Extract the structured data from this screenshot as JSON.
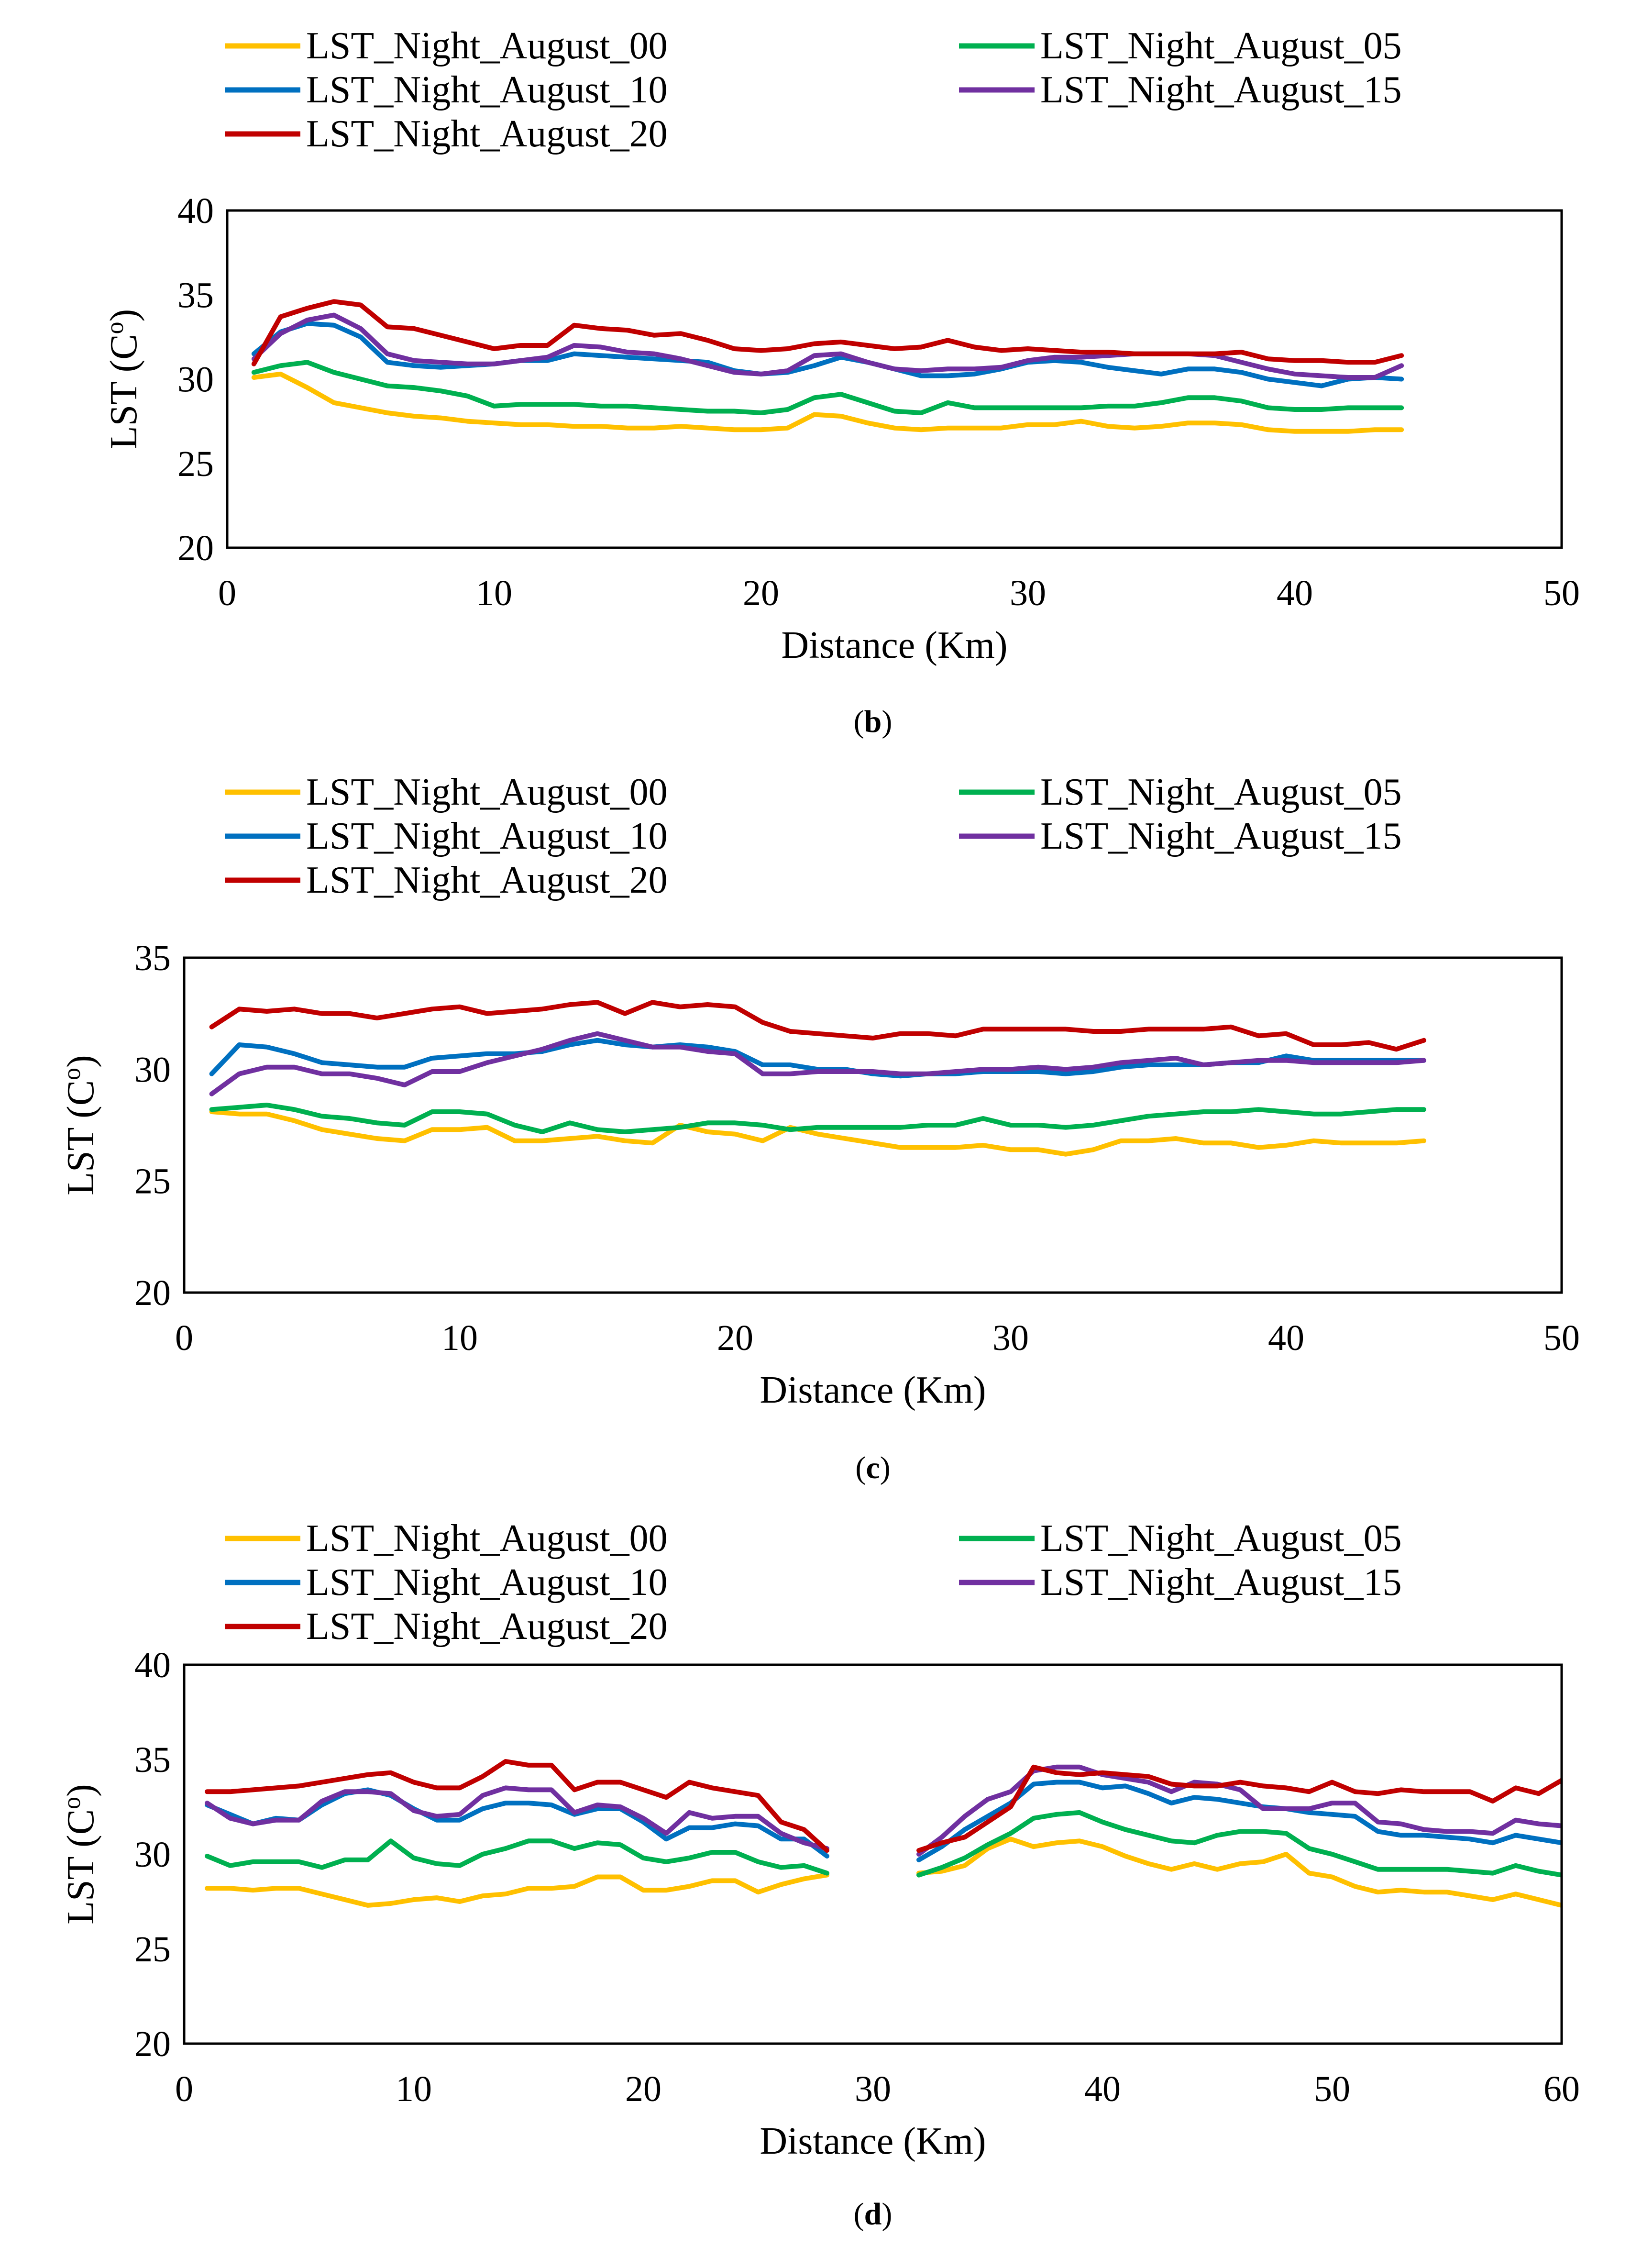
{
  "colors": {
    "LST_Night_August_00": "#FFC000",
    "LST_Night_August_05": "#00B050",
    "LST_Night_August_10": "#0070C0",
    "LST_Night_August_15": "#7030A0",
    "LST_Night_August_20": "#C00000"
  },
  "chart_data": [
    {
      "type": "line",
      "caption": "(b)",
      "caption_letter": "b",
      "xlabel": "Distance (Km)",
      "ylabel": "LST (C",
      "ylabel_sup": "o",
      "ylabel_close": ")",
      "xlim": [
        0,
        50
      ],
      "ylim": [
        20,
        40
      ],
      "xticks": [
        "0",
        "10",
        "20",
        "30",
        "40",
        "50"
      ],
      "yticks": [
        "20",
        "25",
        "30",
        "35",
        "40"
      ],
      "x": [
        1,
        2,
        3,
        4,
        5,
        6,
        7,
        8,
        9,
        10,
        11,
        12,
        13,
        14,
        15,
        16,
        17,
        18,
        19,
        20,
        21,
        22,
        23,
        24,
        25,
        26,
        27,
        28,
        29,
        30,
        31,
        32,
        33,
        34,
        35,
        36,
        37,
        38,
        39,
        40,
        41,
        42,
        43,
        44
      ],
      "series": [
        {
          "name": "LST_Night_August_00",
          "values": [
            30.1,
            30.3,
            29.5,
            28.6,
            28.3,
            28.0,
            27.8,
            27.7,
            27.5,
            27.4,
            27.3,
            27.3,
            27.2,
            27.2,
            27.1,
            27.1,
            27.2,
            27.1,
            27.0,
            27.0,
            27.1,
            27.9,
            27.8,
            27.4,
            27.1,
            27.0,
            27.1,
            27.1,
            27.1,
            27.3,
            27.3,
            27.5,
            27.2,
            27.1,
            27.2,
            27.4,
            27.4,
            27.3,
            27.0,
            26.9,
            26.9,
            26.9,
            27.0,
            27.0
          ]
        },
        {
          "name": "LST_Night_August_05",
          "values": [
            30.4,
            30.8,
            31.0,
            30.4,
            30.0,
            29.6,
            29.5,
            29.3,
            29.0,
            28.4,
            28.5,
            28.5,
            28.5,
            28.4,
            28.4,
            28.3,
            28.2,
            28.1,
            28.1,
            28.0,
            28.2,
            28.9,
            29.1,
            28.6,
            28.1,
            28.0,
            28.6,
            28.3,
            28.3,
            28.3,
            28.3,
            28.3,
            28.4,
            28.4,
            28.6,
            28.9,
            28.9,
            28.7,
            28.3,
            28.2,
            28.2,
            28.3,
            28.3,
            28.3
          ]
        },
        {
          "name": "LST_Night_August_10",
          "values": [
            31.5,
            32.8,
            33.3,
            33.2,
            32.5,
            31.0,
            30.8,
            30.7,
            30.8,
            30.9,
            31.1,
            31.1,
            31.5,
            31.4,
            31.3,
            31.2,
            31.1,
            31.0,
            30.5,
            30.3,
            30.4,
            30.8,
            31.3,
            31.0,
            30.6,
            30.2,
            30.2,
            30.3,
            30.6,
            31.0,
            31.1,
            31.0,
            30.7,
            30.5,
            30.3,
            30.6,
            30.6,
            30.4,
            30.0,
            29.8,
            29.6,
            30.0,
            30.1,
            30.0
          ]
        },
        {
          "name": "LST_Night_August_15",
          "values": [
            31.2,
            32.7,
            33.5,
            33.8,
            33.0,
            31.5,
            31.1,
            31.0,
            30.9,
            30.9,
            31.1,
            31.3,
            32.0,
            31.9,
            31.6,
            31.5,
            31.2,
            30.8,
            30.4,
            30.3,
            30.5,
            31.4,
            31.5,
            31.0,
            30.6,
            30.5,
            30.6,
            30.6,
            30.7,
            31.1,
            31.3,
            31.3,
            31.4,
            31.5,
            31.5,
            31.5,
            31.4,
            31.0,
            30.6,
            30.3,
            30.2,
            30.1,
            30.1,
            30.8
          ]
        },
        {
          "name": "LST_Night_August_20",
          "values": [
            30.9,
            33.7,
            34.2,
            34.6,
            34.4,
            33.1,
            33.0,
            32.6,
            32.2,
            31.8,
            32.0,
            32.0,
            33.2,
            33.0,
            32.9,
            32.6,
            32.7,
            32.3,
            31.8,
            31.7,
            31.8,
            32.1,
            32.2,
            32.0,
            31.8,
            31.9,
            32.3,
            31.9,
            31.7,
            31.8,
            31.7,
            31.6,
            31.6,
            31.5,
            31.5,
            31.5,
            31.5,
            31.6,
            31.2,
            31.1,
            31.1,
            31.0,
            31.0,
            31.4
          ]
        }
      ]
    },
    {
      "type": "line",
      "caption": "(c)",
      "caption_letter": "c",
      "xlabel": "Distance (Km)",
      "ylabel": "LST (C",
      "ylabel_sup": "o",
      "ylabel_close": ")",
      "xlim": [
        0,
        50
      ],
      "ylim": [
        20,
        35
      ],
      "xticks": [
        "0",
        "10",
        "20",
        "30",
        "40",
        "50"
      ],
      "yticks": [
        "20",
        "25",
        "30",
        "35"
      ],
      "x": [
        1,
        2,
        3,
        4,
        5,
        6,
        7,
        8,
        9,
        10,
        11,
        12,
        13,
        14,
        15,
        16,
        17,
        18,
        19,
        20,
        21,
        22,
        23,
        24,
        25,
        26,
        27,
        28,
        29,
        30,
        31,
        32,
        33,
        34,
        35,
        36,
        37,
        38,
        39,
        40,
        41,
        42,
        43,
        44,
        45
      ],
      "series": [
        {
          "name": "LST_Night_August_00",
          "values": [
            28.1,
            28.0,
            28.0,
            27.7,
            27.3,
            27.1,
            26.9,
            26.8,
            27.3,
            27.3,
            27.4,
            26.8,
            26.8,
            26.9,
            27.0,
            26.8,
            26.7,
            27.5,
            27.2,
            27.1,
            26.8,
            27.4,
            27.1,
            26.9,
            26.7,
            26.5,
            26.5,
            26.5,
            26.6,
            26.4,
            26.4,
            26.2,
            26.4,
            26.8,
            26.8,
            26.9,
            26.7,
            26.7,
            26.5,
            26.6,
            26.8,
            26.7,
            26.7,
            26.7,
            26.8
          ]
        },
        {
          "name": "LST_Night_August_05",
          "values": [
            28.2,
            28.3,
            28.4,
            28.2,
            27.9,
            27.8,
            27.6,
            27.5,
            28.1,
            28.1,
            28.0,
            27.5,
            27.2,
            27.6,
            27.3,
            27.2,
            27.3,
            27.4,
            27.6,
            27.6,
            27.5,
            27.3,
            27.4,
            27.4,
            27.4,
            27.4,
            27.5,
            27.5,
            27.8,
            27.5,
            27.5,
            27.4,
            27.5,
            27.7,
            27.9,
            28.0,
            28.1,
            28.1,
            28.2,
            28.1,
            28.0,
            28.0,
            28.1,
            28.2,
            28.2
          ]
        },
        {
          "name": "LST_Night_August_10",
          "values": [
            29.8,
            31.1,
            31.0,
            30.7,
            30.3,
            30.2,
            30.1,
            30.1,
            30.5,
            30.6,
            30.7,
            30.7,
            30.8,
            31.1,
            31.3,
            31.1,
            31.0,
            31.1,
            31.0,
            30.8,
            30.2,
            30.2,
            30.0,
            30.0,
            29.8,
            29.7,
            29.8,
            29.8,
            29.9,
            29.9,
            29.9,
            29.8,
            29.9,
            30.1,
            30.2,
            30.2,
            30.2,
            30.3,
            30.3,
            30.6,
            30.4,
            30.4,
            30.4,
            30.4,
            30.4
          ]
        },
        {
          "name": "LST_Night_August_15",
          "values": [
            28.9,
            29.8,
            30.1,
            30.1,
            29.8,
            29.8,
            29.6,
            29.3,
            29.9,
            29.9,
            30.3,
            30.6,
            30.9,
            31.3,
            31.6,
            31.3,
            31.0,
            31.0,
            30.8,
            30.7,
            29.8,
            29.8,
            29.9,
            29.9,
            29.9,
            29.8,
            29.8,
            29.9,
            30.0,
            30.0,
            30.1,
            30.0,
            30.1,
            30.3,
            30.4,
            30.5,
            30.2,
            30.3,
            30.4,
            30.4,
            30.3,
            30.3,
            30.3,
            30.3,
            30.4
          ]
        },
        {
          "name": "LST_Night_August_20",
          "values": [
            31.9,
            32.7,
            32.6,
            32.7,
            32.5,
            32.5,
            32.3,
            32.5,
            32.7,
            32.8,
            32.5,
            32.6,
            32.7,
            32.9,
            33.0,
            32.5,
            33.0,
            32.8,
            32.9,
            32.8,
            32.1,
            31.7,
            31.6,
            31.5,
            31.4,
            31.6,
            31.6,
            31.5,
            31.8,
            31.8,
            31.8,
            31.8,
            31.7,
            31.7,
            31.8,
            31.8,
            31.8,
            31.9,
            31.5,
            31.6,
            31.1,
            31.1,
            31.2,
            30.9,
            31.3
          ]
        }
      ]
    },
    {
      "type": "line",
      "caption": "(d)",
      "caption_letter": "d",
      "xlabel": "Distance (Km)",
      "ylabel": "LST (C",
      "ylabel_sup": "o",
      "ylabel_close": ")",
      "xlim": [
        0,
        60
      ],
      "ylim": [
        20,
        40
      ],
      "xticks": [
        "0",
        "10",
        "20",
        "30",
        "40",
        "50",
        "60"
      ],
      "yticks": [
        "20",
        "25",
        "30",
        "35",
        "40"
      ],
      "x": [
        1,
        2,
        3,
        4,
        5,
        6,
        7,
        8,
        9,
        10,
        11,
        12,
        13,
        14,
        15,
        16,
        17,
        18,
        19,
        20,
        21,
        22,
        23,
        24,
        25,
        26,
        27,
        28,
        32,
        33,
        34,
        35,
        36,
        37,
        38,
        39,
        40,
        41,
        42,
        43,
        44,
        45,
        46,
        47,
        48,
        49,
        50,
        51,
        52,
        53,
        54,
        55,
        56,
        57,
        58,
        59,
        60
      ],
      "series": [
        {
          "name": "LST_Night_August_00",
          "values": [
            28.2,
            28.2,
            28.1,
            28.2,
            28.2,
            27.9,
            27.6,
            27.3,
            27.4,
            27.6,
            27.7,
            27.5,
            27.8,
            27.9,
            28.2,
            28.2,
            28.3,
            28.8,
            28.8,
            28.1,
            28.1,
            28.3,
            28.6,
            28.6,
            28.0,
            28.4,
            28.7,
            28.9,
            29.0,
            29.1,
            29.4,
            30.3,
            30.8,
            30.4,
            30.6,
            30.7,
            30.4,
            29.9,
            29.5,
            29.2,
            29.5,
            29.2,
            29.5,
            29.6,
            30.0,
            29.0,
            28.8,
            28.3,
            28.0,
            28.1,
            28.0,
            28.0,
            27.8,
            27.6,
            27.9,
            27.6,
            27.3
          ]
        },
        {
          "name": "LST_Night_August_05",
          "values": [
            29.9,
            29.4,
            29.6,
            29.6,
            29.6,
            29.3,
            29.7,
            29.7,
            30.7,
            29.8,
            29.5,
            29.4,
            30.0,
            30.3,
            30.7,
            30.7,
            30.3,
            30.6,
            30.5,
            29.8,
            29.6,
            29.8,
            30.1,
            30.1,
            29.6,
            29.3,
            29.4,
            29.0,
            28.9,
            29.3,
            29.8,
            30.5,
            31.1,
            31.9,
            32.1,
            32.2,
            31.7,
            31.3,
            31.0,
            30.7,
            30.6,
            31.0,
            31.2,
            31.2,
            31.1,
            30.3,
            30.0,
            29.6,
            29.2,
            29.2,
            29.2,
            29.2,
            29.1,
            29.0,
            29.4,
            29.1,
            28.9
          ]
        },
        {
          "name": "LST_Night_August_10",
          "values": [
            32.6,
            32.1,
            31.6,
            31.9,
            31.8,
            32.6,
            33.2,
            33.4,
            33.1,
            32.4,
            31.8,
            31.8,
            32.4,
            32.7,
            32.7,
            32.6,
            32.1,
            32.4,
            32.4,
            31.7,
            30.8,
            31.4,
            31.4,
            31.6,
            31.5,
            30.8,
            30.8,
            29.9,
            29.7,
            30.4,
            31.3,
            32.0,
            32.7,
            33.7,
            33.8,
            33.8,
            33.5,
            33.6,
            33.2,
            32.7,
            33.0,
            32.9,
            32.7,
            32.5,
            32.4,
            32.2,
            32.1,
            32.0,
            31.2,
            31.0,
            31.0,
            30.9,
            30.8,
            30.6,
            31.0,
            30.8,
            30.6
          ]
        },
        {
          "name": "LST_Night_August_15",
          "values": [
            32.7,
            31.9,
            31.6,
            31.8,
            31.8,
            32.8,
            33.3,
            33.3,
            33.2,
            32.3,
            32.0,
            32.1,
            33.1,
            33.5,
            33.4,
            33.4,
            32.2,
            32.6,
            32.5,
            31.9,
            31.1,
            32.2,
            31.9,
            32.0,
            32.0,
            31.1,
            30.6,
            30.3,
            30.0,
            30.9,
            32.0,
            32.9,
            33.3,
            34.4,
            34.6,
            34.6,
            34.2,
            34.0,
            33.8,
            33.3,
            33.8,
            33.7,
            33.4,
            32.4,
            32.4,
            32.4,
            32.7,
            32.7,
            31.7,
            31.6,
            31.3,
            31.2,
            31.2,
            31.1,
            31.8,
            31.6,
            31.5
          ]
        },
        {
          "name": "LST_Night_August_20",
          "values": [
            33.3,
            33.3,
            33.4,
            33.5,
            33.6,
            33.8,
            34.0,
            34.2,
            34.3,
            33.8,
            33.5,
            33.5,
            34.1,
            34.9,
            34.7,
            34.7,
            33.4,
            33.8,
            33.8,
            33.4,
            33.0,
            33.8,
            33.5,
            33.3,
            33.1,
            31.7,
            31.3,
            30.2,
            30.2,
            30.6,
            30.9,
            31.7,
            32.5,
            34.6,
            34.3,
            34.2,
            34.3,
            34.2,
            34.1,
            33.7,
            33.6,
            33.6,
            33.8,
            33.6,
            33.5,
            33.3,
            33.8,
            33.3,
            33.2,
            33.4,
            33.3,
            33.3,
            33.3,
            32.8,
            33.5,
            33.2,
            33.9
          ]
        }
      ]
    }
  ]
}
